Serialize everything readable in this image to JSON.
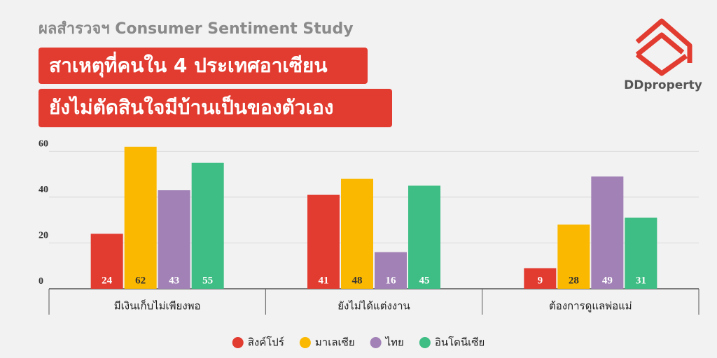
{
  "header": {
    "subtitle": "ผลสำรวจฯ Consumer Sentiment Study",
    "title_lines": [
      "สาเหตุที่คนใน 4 ประเทศอาเซียน",
      "ยังไม่ตัดสินใจมีบ้านเป็นของตัวเอง"
    ],
    "logo": "DDproperty"
  },
  "chart_data": {
    "type": "bar",
    "categories": [
      "มีเงินเก็บไม่เพียงพอ",
      "ยังไม่ได้แต่งงาน",
      "ต้องการดูแลพ่อแม่"
    ],
    "series": [
      {
        "name": "สิงค์โปร์",
        "color": "#e23b30",
        "values": [
          24,
          41,
          9
        ]
      },
      {
        "name": "มาเลเซีย",
        "color": "#fbb800",
        "values": [
          62,
          48,
          28
        ]
      },
      {
        "name": "ไทย",
        "color": "#a282b6",
        "values": [
          43,
          16,
          49
        ]
      },
      {
        "name": "อินโดนีเซีย",
        "color": "#3ebd84",
        "values": [
          55,
          45,
          31
        ]
      }
    ],
    "ylim": [
      0,
      65
    ],
    "yticks": [
      0,
      20,
      40,
      60
    ],
    "grid": true,
    "legend": "bottom"
  }
}
